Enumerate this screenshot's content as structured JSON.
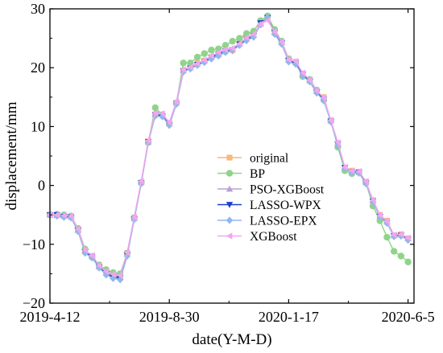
{
  "chart_data": {
    "type": "line",
    "title": "",
    "xlabel": "date(Y-M-D)",
    "ylabel": "displacement/mm",
    "x_tick_labels": [
      "2019-4-12",
      "2019-8-30",
      "2020-1-17",
      "2020-6-5"
    ],
    "x_tick_index": [
      0,
      20,
      40,
      60
    ],
    "xlim": [
      0,
      61
    ],
    "ylim": [
      -20,
      30
    ],
    "y_ticks": [
      -20,
      -10,
      0,
      10,
      20,
      30
    ],
    "y_tick_labels": [
      "−20",
      "−10",
      "0",
      "10",
      "20",
      "30"
    ],
    "grid": false,
    "legend_position": "center-right",
    "series": [
      {
        "name": "original",
        "color": "#f7b97a",
        "marker": "square",
        "values": [
          -5.0,
          -5.0,
          -5.2,
          -5.3,
          -7.5,
          -11.0,
          -12.0,
          -13.5,
          -14.5,
          -15.0,
          -15.3,
          -11.5,
          -5.5,
          0.5,
          7.5,
          12.0,
          12.0,
          10.5,
          14.0,
          19.5,
          20.2,
          20.8,
          21.2,
          21.8,
          22.2,
          22.8,
          23.0,
          24.2,
          25.0,
          25.5,
          27.5,
          28.5,
          26.0,
          24.5,
          21.5,
          21.0,
          19.0,
          18.0,
          16.0,
          15.0,
          11.0,
          7.0,
          3.0,
          2.5,
          2.3,
          0.5,
          -2.5,
          -5.0,
          -6.0,
          -8.5,
          -8.3,
          -9.0
        ]
      },
      {
        "name": "BP",
        "color": "#8fd48a",
        "marker": "circle",
        "values": [
          -5.0,
          -4.9,
          -5.0,
          -5.2,
          -7.3,
          -10.8,
          -12.2,
          -13.5,
          -14.3,
          -14.8,
          -15.0,
          -11.5,
          -5.5,
          0.5,
          7.3,
          13.2,
          12.0,
          10.5,
          14.0,
          20.8,
          20.8,
          21.8,
          22.4,
          23.0,
          23.2,
          23.8,
          24.5,
          25.0,
          25.8,
          26.2,
          28.0,
          28.8,
          26.5,
          24.5,
          21.5,
          20.8,
          18.5,
          18.0,
          16.2,
          14.5,
          11.0,
          6.5,
          2.5,
          2.0,
          2.2,
          0.5,
          -3.5,
          -6.0,
          -8.8,
          -11.2,
          -12.0,
          -13.0
        ]
      },
      {
        "name": "PSO-XGBoost",
        "color": "#b6a2d4",
        "marker": "triangle-up",
        "values": [
          -5.0,
          -5.1,
          -5.2,
          -5.3,
          -7.6,
          -11.2,
          -12.0,
          -13.8,
          -14.8,
          -15.3,
          -15.5,
          -11.6,
          -5.6,
          0.6,
          7.4,
          12.2,
          12.1,
          10.6,
          14.1,
          19.6,
          20.0,
          20.6,
          21.2,
          21.9,
          22.5,
          23.0,
          23.2,
          24.0,
          25.0,
          25.6,
          27.5,
          28.3,
          26.0,
          24.3,
          21.3,
          21.0,
          19.0,
          17.8,
          16.0,
          14.8,
          11.0,
          7.2,
          3.0,
          2.4,
          2.3,
          0.6,
          -2.6,
          -5.2,
          -6.2,
          -8.5,
          -8.4,
          -9.0
        ]
      },
      {
        "name": "LASSO-WPX",
        "color": "#1c3fcf",
        "marker": "triangle-down",
        "values": [
          -5.0,
          -5.0,
          -5.3,
          -5.4,
          -7.6,
          -11.3,
          -12.2,
          -13.9,
          -15.0,
          -15.5,
          -15.8,
          -11.8,
          -5.7,
          0.4,
          7.4,
          12.0,
          11.8,
          10.3,
          13.9,
          19.4,
          19.9,
          20.5,
          21.0,
          21.7,
          22.3,
          22.8,
          23.0,
          24.0,
          24.8,
          25.4,
          27.6,
          28.5,
          25.9,
          24.2,
          21.2,
          20.8,
          18.8,
          17.7,
          15.8,
          14.6,
          10.9,
          7.0,
          3.0,
          2.3,
          2.2,
          0.4,
          -2.7,
          -5.3,
          -6.3,
          -8.6,
          -8.5,
          -9.2
        ]
      },
      {
        "name": "LASSO-EPX",
        "color": "#92b7ea",
        "marker": "diamond",
        "values": [
          -5.0,
          -5.2,
          -5.4,
          -5.5,
          -7.8,
          -11.5,
          -12.3,
          -14.0,
          -15.2,
          -15.8,
          -16.0,
          -12.0,
          -5.8,
          0.3,
          7.3,
          11.8,
          11.7,
          10.2,
          13.8,
          19.3,
          19.8,
          20.4,
          20.9,
          21.5,
          22.0,
          22.6,
          22.9,
          23.8,
          24.6,
          25.2,
          27.3,
          28.6,
          25.7,
          24.0,
          21.0,
          20.6,
          18.6,
          17.6,
          15.7,
          14.4,
          10.8,
          6.8,
          2.9,
          2.2,
          2.1,
          0.3,
          -2.8,
          -5.4,
          -6.4,
          -8.7,
          -8.6,
          -9.3
        ]
      },
      {
        "name": "XGBoost",
        "color": "#f3a6f0",
        "marker": "triangle-left",
        "values": [
          -5.0,
          -5.0,
          -5.1,
          -5.2,
          -7.4,
          -11.0,
          -11.9,
          -13.6,
          -14.6,
          -15.1,
          -15.3,
          -11.4,
          -5.4,
          0.7,
          7.6,
          12.3,
          12.2,
          10.7,
          14.2,
          19.7,
          20.1,
          20.7,
          21.3,
          22.0,
          22.6,
          23.1,
          23.3,
          24.1,
          25.1,
          25.7,
          27.4,
          28.0,
          26.1,
          24.4,
          21.4,
          21.1,
          19.1,
          17.9,
          16.1,
          14.9,
          11.1,
          7.3,
          3.1,
          2.5,
          2.4,
          0.7,
          -2.5,
          -5.1,
          -6.1,
          -8.4,
          -8.3,
          -8.9
        ]
      }
    ]
  }
}
